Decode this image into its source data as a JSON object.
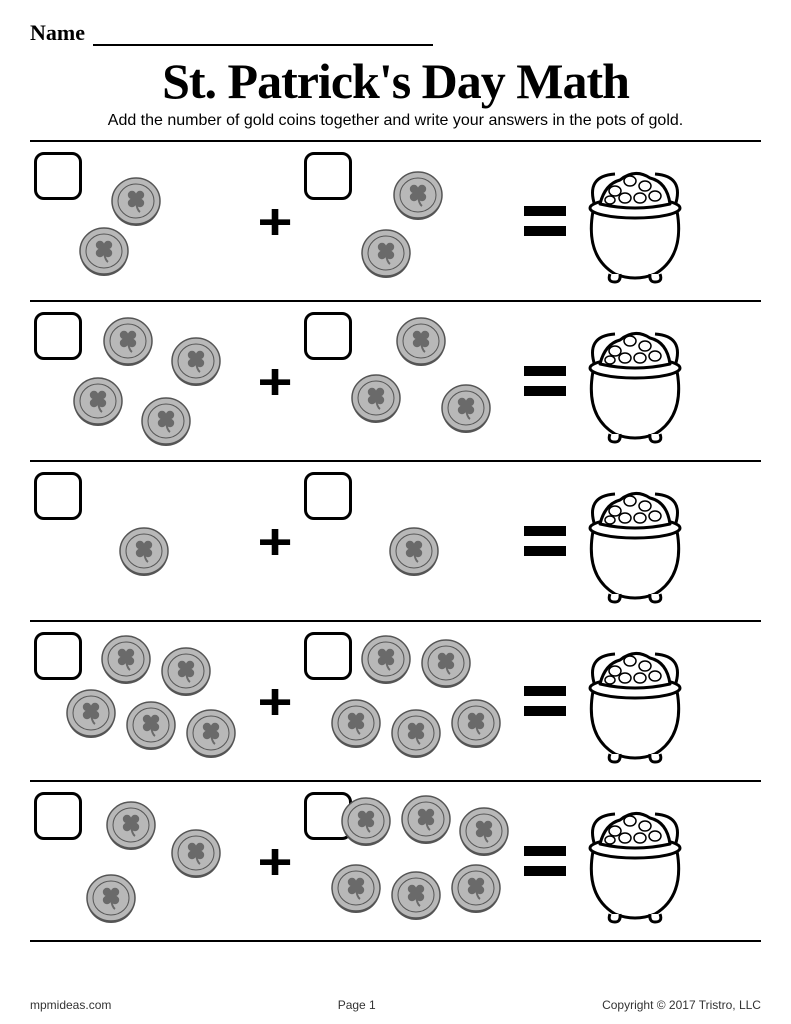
{
  "name_label": "Name",
  "title": "St. Patrick's Day Math",
  "instructions": "Add the number of gold coins together and write your answers in the pots of gold.",
  "plus_sign": "+",
  "coin_color_fill": "#b8b8b8",
  "coin_color_stroke": "#555555",
  "clover_color": "#6a6a6a",
  "pot_stroke": "#000000",
  "pot_fill": "#ffffff",
  "pot_gold_fill": "#ffffff",
  "rows": [
    {
      "left_count": 2,
      "right_count": 2,
      "left_positions": [
        [
          80,
          28
        ],
        [
          48,
          78
        ]
      ],
      "right_positions": [
        [
          92,
          22
        ],
        [
          60,
          80
        ]
      ]
    },
    {
      "left_count": 4,
      "right_count": 3,
      "left_positions": [
        [
          72,
          8
        ],
        [
          140,
          28
        ],
        [
          42,
          68
        ],
        [
          110,
          88
        ]
      ],
      "right_positions": [
        [
          95,
          8
        ],
        [
          50,
          65
        ],
        [
          140,
          75
        ]
      ]
    },
    {
      "left_count": 1,
      "right_count": 1,
      "left_positions": [
        [
          88,
          58
        ]
      ],
      "right_positions": [
        [
          88,
          58
        ]
      ]
    },
    {
      "left_count": 5,
      "right_count": 5,
      "left_positions": [
        [
          70,
          6
        ],
        [
          130,
          18
        ],
        [
          35,
          60
        ],
        [
          95,
          72
        ],
        [
          155,
          80
        ]
      ],
      "right_positions": [
        [
          60,
          6
        ],
        [
          120,
          10
        ],
        [
          30,
          70
        ],
        [
          90,
          80
        ],
        [
          150,
          70
        ]
      ]
    },
    {
      "left_count": 3,
      "right_count": 6,
      "left_positions": [
        [
          75,
          12
        ],
        [
          140,
          40
        ],
        [
          55,
          85
        ]
      ],
      "right_positions": [
        [
          40,
          8
        ],
        [
          100,
          6
        ],
        [
          158,
          18
        ],
        [
          30,
          75
        ],
        [
          90,
          82
        ],
        [
          150,
          75
        ]
      ]
    }
  ],
  "footer": {
    "left": "mpmideas.com",
    "center": "Page 1",
    "right": "Copyright © 2017 Tristro, LLC"
  }
}
